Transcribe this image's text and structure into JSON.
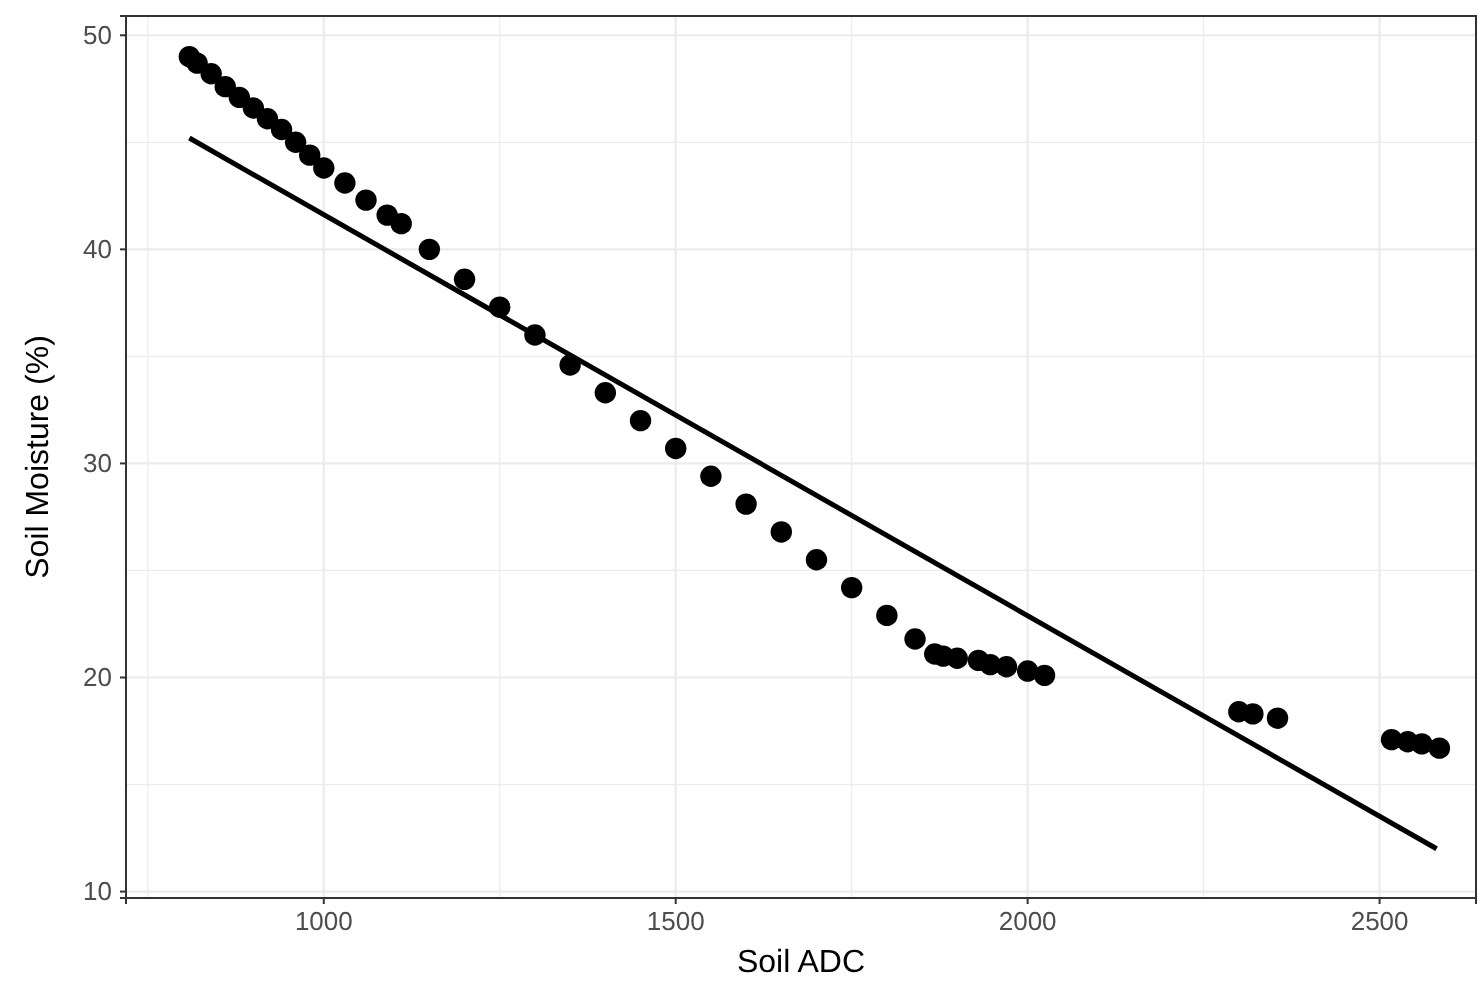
{
  "chart_data": {
    "type": "scatter",
    "xlabel": "Soil ADC",
    "ylabel": "Soil Moisture (%)",
    "xlim": [
      719,
      2637
    ],
    "ylim": [
      9.7,
      50.9
    ],
    "xticks": [
      {
        "value": 750,
        "label": null
      },
      1000,
      {
        "value": 1250,
        "label": null
      },
      1500,
      {
        "value": 1750,
        "label": null
      },
      2000,
      {
        "value": 2250,
        "label": null
      },
      2500
    ],
    "yticks": [
      10,
      {
        "value": 15,
        "label": null
      },
      20,
      {
        "value": 25,
        "label": null
      },
      30,
      {
        "value": 35,
        "label": null
      },
      40,
      {
        "value": 45,
        "label": null
      },
      50
    ],
    "grid": true,
    "series": [
      {
        "marker": "circle",
        "color": "#000000",
        "x": [
          809,
          820,
          840,
          860,
          880,
          900,
          920,
          940,
          960,
          980,
          1000,
          1030,
          1060,
          1090,
          1110,
          1150,
          1200,
          1250,
          1300,
          1350,
          1400,
          1450,
          1500,
          1550,
          1600,
          1650,
          1700,
          1750,
          1800,
          1840,
          1868,
          1880,
          1900,
          1930,
          1947,
          1970,
          2000,
          2024,
          2300,
          2320,
          2355,
          2517,
          2540,
          2560,
          2585
        ],
        "values": [
          49.0,
          48.7,
          48.2,
          47.6,
          47.1,
          46.6,
          46.1,
          45.6,
          45.0,
          44.4,
          43.8,
          43.1,
          42.3,
          41.6,
          41.2,
          40.0,
          38.6,
          37.3,
          36.0,
          34.6,
          33.3,
          32.0,
          30.7,
          29.4,
          28.1,
          26.8,
          25.5,
          24.2,
          22.9,
          21.8,
          21.1,
          21.0,
          20.9,
          20.8,
          20.6,
          20.5,
          20.3,
          20.1,
          18.4,
          18.3,
          18.1,
          17.1,
          17.0,
          16.9,
          16.7
        ]
      },
      {
        "type": "line",
        "marker": "none",
        "color": "#000000",
        "x": [
          809,
          2581
        ],
        "values": [
          45.2,
          12.0
        ]
      }
    ]
  }
}
